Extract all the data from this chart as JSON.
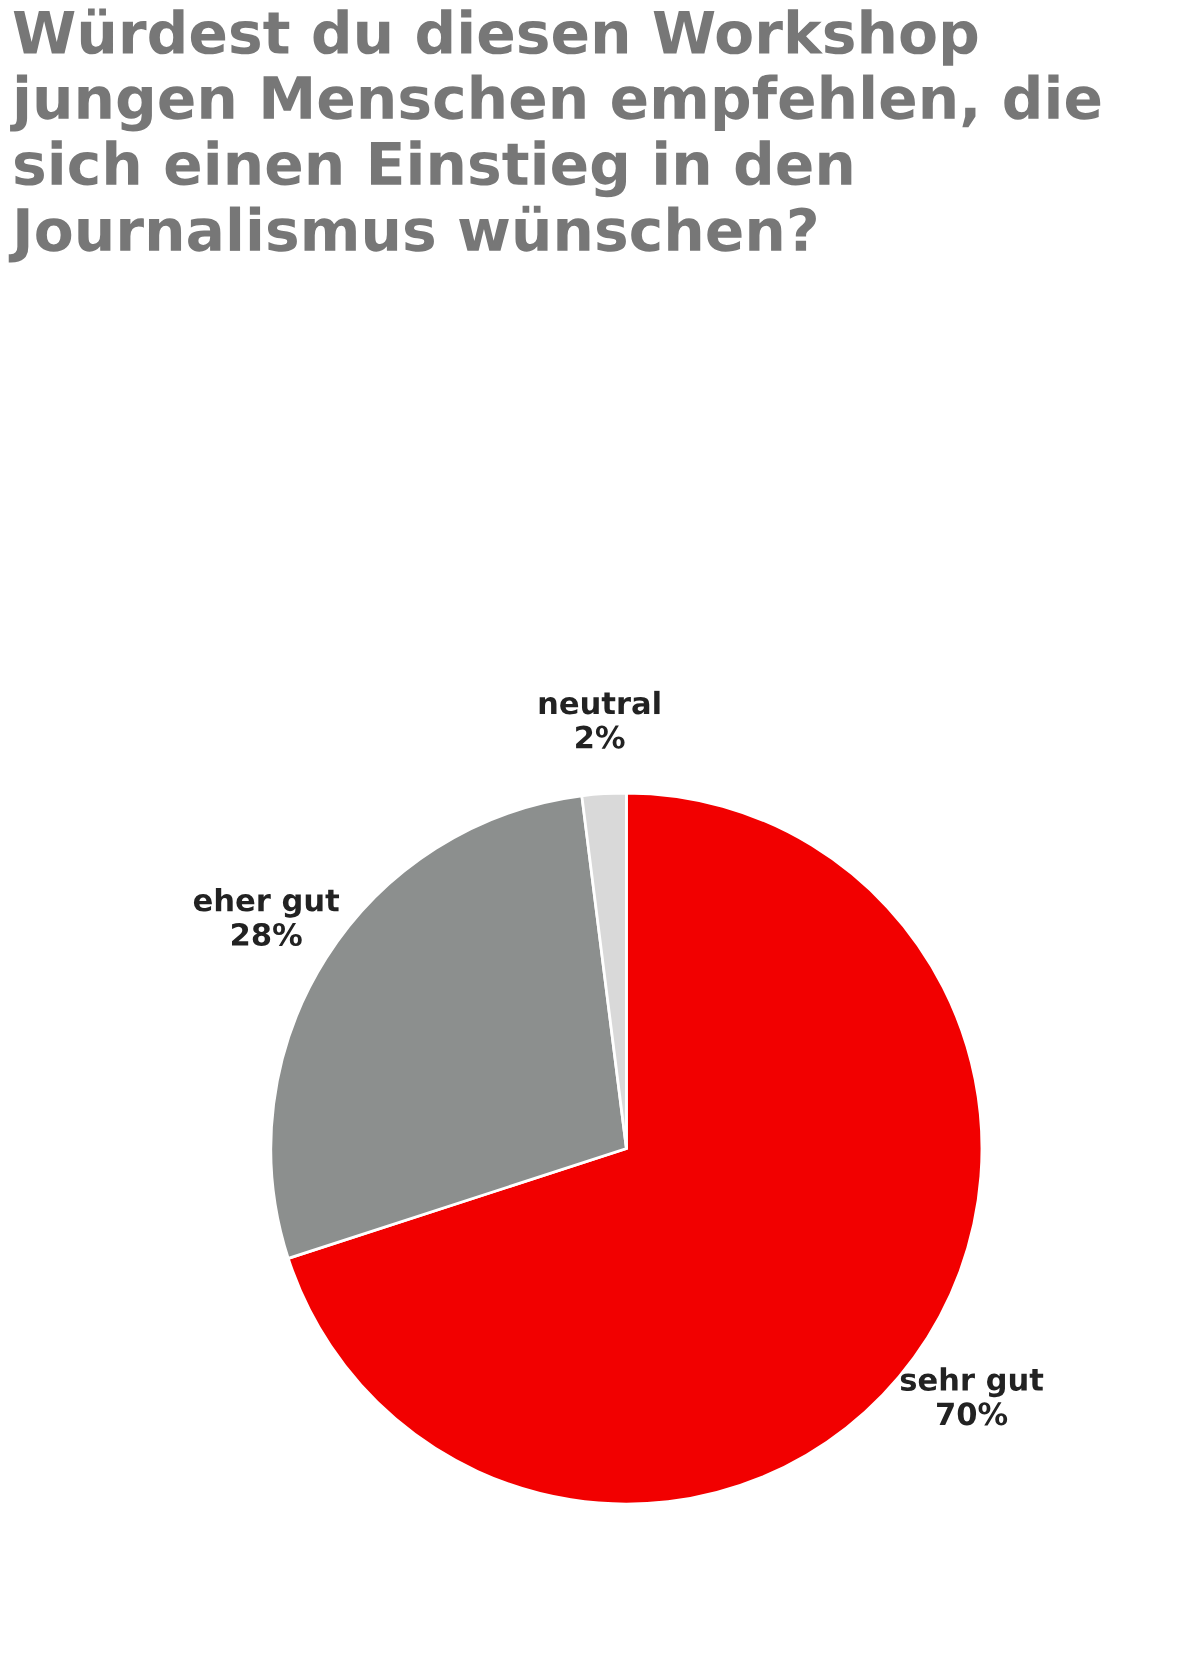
{
  "chart_data": {
    "type": "pie",
    "title": "Würdest du diesen Workshop jungen Menschen empfehlen, die sich einen Einstieg in den Journalismus wünschen?",
    "categories": [
      "sehr gut",
      "eher gut",
      "neutral"
    ],
    "values": [
      70,
      28,
      2
    ],
    "value_labels": [
      "70%",
      "28%",
      "2%"
    ],
    "colors": [
      "#f20000",
      "#8c8f8e",
      "#d9d9d9"
    ],
    "legend": false
  }
}
